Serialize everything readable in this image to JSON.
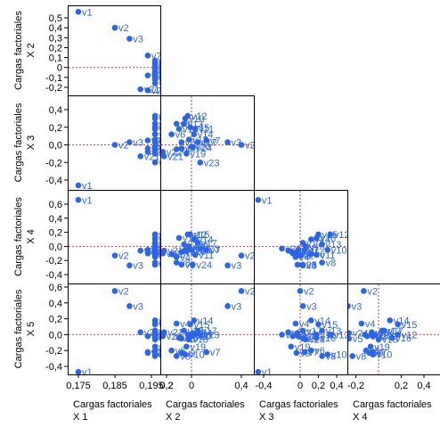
{
  "chart_data": {
    "type": "scatter",
    "title": "",
    "subtitle": "",
    "axis_title": "Cargas factoriales",
    "factor_names": [
      "X 1",
      "X 2",
      "X 3",
      "X 4",
      "X 5"
    ],
    "grid": false,
    "legend": "none",
    "reference_lines": "dashed red at 0 on both axes",
    "colors": {
      "points": "#2b66e8",
      "reference": "#e23a3a",
      "frame": "#000000"
    },
    "axis_ticks": {
      "X 1": [
        "0,175",
        "0,185",
        "0,195"
      ],
      "X 2": [
        "0,2",
        "0",
        "0,2",
        "0,4"
      ],
      "X 3": [
        "-0,4",
        "0",
        "0,2",
        "0,4"
      ],
      "X 4": [
        "-0,2",
        "0,2",
        "0,4"
      ],
      "Y 2": [
        "0,5",
        "0,4",
        "0,3",
        "0,2",
        "0,1",
        "0",
        "-0,1",
        "-0,2"
      ],
      "Y 3": [
        "0,4",
        "0,2",
        "0,0",
        "-0,2",
        "-0,4"
      ],
      "Y 4": [
        "0,6",
        "0,4",
        "0,2",
        "0,0",
        "-0,2",
        "-0,4"
      ],
      "Y 5": [
        "0,6",
        "0,4",
        "0,2",
        "0,0",
        "-0,2",
        "-0,4"
      ]
    },
    "point_names": [
      "v1",
      "v2",
      "v3",
      "v4",
      "v5",
      "v6",
      "v7",
      "v8",
      "v9",
      "v10",
      "v11",
      "v12",
      "v13",
      "v14",
      "v15",
      "v16",
      "v17",
      "v18",
      "v19",
      "v20",
      "v21",
      "v22",
      "v23",
      "v24"
    ],
    "loadings": {
      "v1": [
        0.175,
        0.56,
        -0.46,
        0.66,
        -0.47
      ],
      "v2": [
        0.185,
        0.4,
        0.0,
        -0.13,
        0.55
      ],
      "v3": [
        0.189,
        0.29,
        0.03,
        -0.27,
        0.36
      ],
      "v4": [
        0.196,
        -0.12,
        -0.05,
        -0.15,
        0.14
      ],
      "v5": [
        0.196,
        -0.08,
        0.03,
        -0.26,
        -0.05
      ],
      "v6": [
        0.196,
        -0.16,
        0.12,
        -0.11,
        -0.2
      ],
      "v7": [
        0.194,
        0.12,
        0.05,
        -0.05,
        -0.22
      ],
      "v8": [
        0.196,
        -0.12,
        0.24,
        -0.23,
        -0.27
      ],
      "v9": [
        0.194,
        -0.08,
        -0.04,
        -0.08,
        -0.23
      ],
      "v10": [
        0.196,
        -0.05,
        0.3,
        -0.05,
        -0.25
      ],
      "v11": [
        0.196,
        0.03,
        0.18,
        -0.12,
        0.0
      ],
      "v12": [
        0.196,
        -0.03,
        0.33,
        0.17,
        0.0
      ],
      "v13": [
        0.196,
        -0.06,
        0.24,
        0.03,
        0.05
      ],
      "v14": [
        0.196,
        0.02,
        0.12,
        0.1,
        0.18
      ],
      "v15": [
        0.196,
        -0.01,
        0.2,
        0.17,
        0.13
      ],
      "v16": [
        0.196,
        -0.1,
        0.18,
        0.12,
        -0.04
      ],
      "v17": [
        0.196,
        0.05,
        0.03,
        0.05,
        0.05
      ],
      "v18": [
        0.196,
        -0.02,
        0.06,
        0.0,
        -0.06
      ],
      "v19": [
        0.196,
        -0.04,
        -0.1,
        -0.07,
        -0.15
      ],
      "v20": [
        0.196,
        0.0,
        -0.02,
        -0.05,
        -0.02
      ],
      "v21": [
        0.192,
        -0.22,
        -0.13,
        -0.06,
        0.03
      ],
      "v22": [
        0.194,
        -0.23,
        -0.08,
        -0.1,
        -0.02
      ],
      "v23": [
        0.196,
        0.07,
        -0.2,
        -0.03,
        0.0
      ],
      "v24": [
        0.196,
        0.01,
        -0.03,
        -0.26,
        0.02
      ]
    }
  }
}
